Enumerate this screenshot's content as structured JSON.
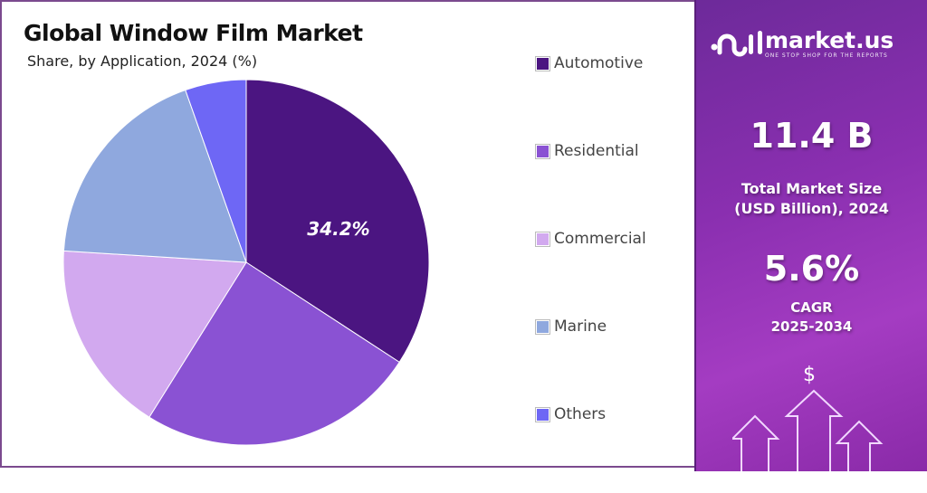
{
  "chart_data": {
    "type": "pie",
    "title": "Global Window Film Market",
    "subtitle": "Share, by Application, 2024 (%)",
    "categories": [
      "Automotive",
      "Residential",
      "Commercial",
      "Marine",
      "Others"
    ],
    "values": [
      34.2,
      24.7,
      17.1,
      18.6,
      5.4
    ],
    "colors": [
      "#4b1581",
      "#8a52d3",
      "#d2a9ef",
      "#8fa8de",
      "#6e67f5"
    ],
    "data_labels": [
      {
        "category": "Automotive",
        "text": "34.2%"
      }
    ],
    "legend_position": "right"
  },
  "panel": {
    "brand": "market.us",
    "tagline": "ONE STOP SHOP FOR THE REPORTS",
    "market_size": "11.4 B",
    "market_size_label_1": "Total Market Size",
    "market_size_label_2": "(USD Billion), 2024",
    "cagr": "5.6%",
    "cagr_label_1": "CAGR",
    "cagr_label_2": "2025-2034",
    "dollar": "$"
  }
}
